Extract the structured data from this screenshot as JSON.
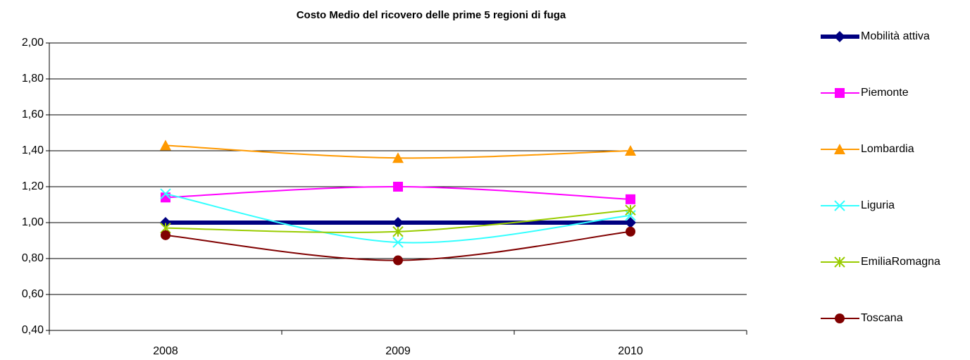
{
  "chart_data": {
    "type": "line",
    "title": "Costo Medio del ricovero delle prime 5 regioni di fuga",
    "categories": [
      "2008",
      "2009",
      "2010"
    ],
    "series": [
      {
        "name": "Mobilità attiva",
        "color": "#000080",
        "marker": "diamond",
        "values": [
          1.0,
          1.0,
          1.0
        ]
      },
      {
        "name": "Piemonte",
        "color": "#ff00ff",
        "marker": "square",
        "values": [
          1.14,
          1.2,
          1.13
        ]
      },
      {
        "name": "Lombardia",
        "color": "#ff9900",
        "marker": "triangle",
        "values": [
          1.43,
          1.36,
          1.4
        ]
      },
      {
        "name": "Liguria",
        "color": "#33ffff",
        "marker": "x",
        "values": [
          1.16,
          0.89,
          1.04
        ]
      },
      {
        "name": "EmiliaRomagna",
        "color": "#99cc00",
        "marker": "star",
        "values": [
          0.97,
          0.95,
          1.07
        ]
      },
      {
        "name": "Toscana",
        "color": "#800000",
        "marker": "circle",
        "values": [
          0.93,
          0.79,
          0.95
        ]
      }
    ],
    "ylim": [
      0.4,
      2.0
    ],
    "yticks": [
      {
        "value": 0.4,
        "label": "0,40"
      },
      {
        "value": 0.6,
        "label": "0,60"
      },
      {
        "value": 0.8,
        "label": "0,80"
      },
      {
        "value": 1.0,
        "label": "1,00"
      },
      {
        "value": 1.2,
        "label": "1,20"
      },
      {
        "value": 1.4,
        "label": "1,40"
      },
      {
        "value": 1.6,
        "label": "1,60"
      },
      {
        "value": 1.8,
        "label": "1,80"
      },
      {
        "value": 2.0,
        "label": "2,00"
      }
    ],
    "grid": true,
    "smooth": true,
    "legend": "right"
  }
}
